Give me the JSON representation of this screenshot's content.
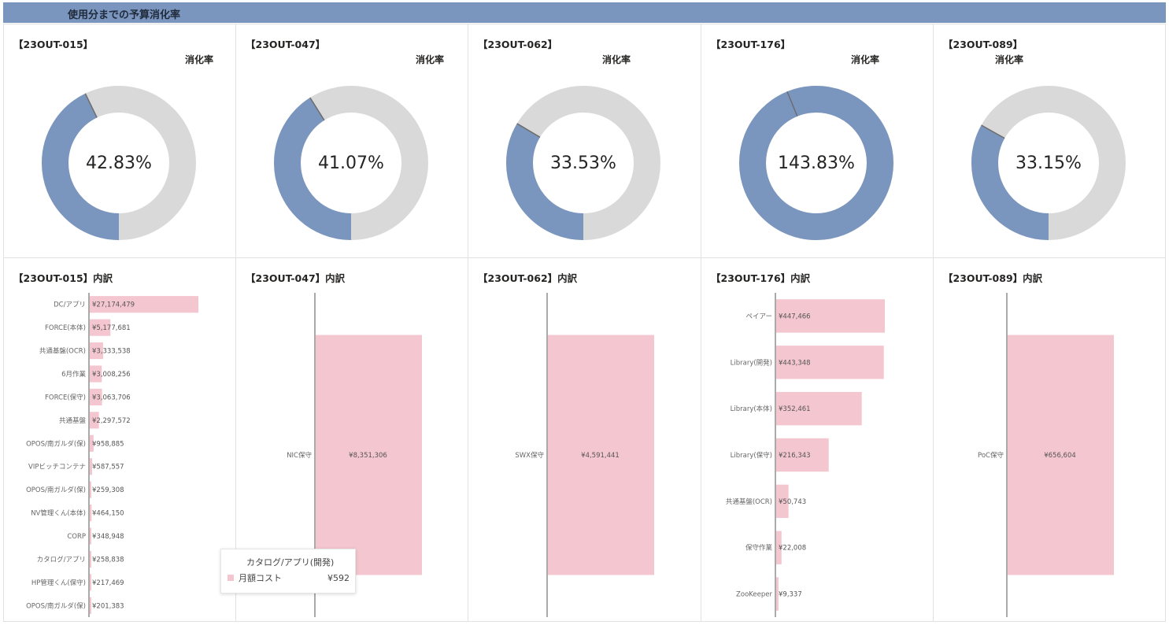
{
  "header": {
    "title": "使用分までの予算消化率"
  },
  "colors": {
    "header_bg": "#7a96be",
    "donut_fill": "#7a96be",
    "donut_track": "#d9d9d9",
    "bar_fill": "#f4c6cf"
  },
  "donut_label": "消化率",
  "projects": [
    {
      "code": "【23OUT-015】",
      "pct_text": "42.83%",
      "pct": 42.83
    },
    {
      "code": "【23OUT-047】",
      "pct_text": "41.07%",
      "pct": 41.07
    },
    {
      "code": "【23OUT-062】",
      "pct_text": "33.53%",
      "pct": 33.53
    },
    {
      "code": "【23OUT-176】",
      "pct_text": "143.83%",
      "pct": 143.83
    },
    {
      "code": "【23OUT-089】",
      "pct_text": "33.15%",
      "pct": 33.15
    }
  ],
  "breakdowns": [
    {
      "title": "【23OUT-015】内訳",
      "chart_data": {
        "type": "bar",
        "categories": [
          "DC/アプリ",
          "FORCE(本体)",
          "共通基盤(OCR)",
          "6月作業",
          "FORCE(保守)",
          "共通基盤",
          "OPOS/南ガルダ(保)",
          "VIPビッチコンテナ",
          "OPOS/南ガルダ(保)",
          "NV管理くん(本体)",
          "CORP",
          "カタログ/アプリ",
          "HP管理くん(保守)",
          "OPOS/南ガルダ(保)"
        ],
        "values": [
          27174479,
          5177681,
          3333538,
          3008256,
          3063706,
          2297572,
          958885,
          587557,
          259308,
          464150,
          348948,
          258838,
          217469,
          201383
        ],
        "value_labels": [
          "¥27,174,479",
          "¥5,177,681",
          "¥3,333,538",
          "¥3,008,256",
          "¥3,063,706",
          "¥2,297,572",
          "¥958,885",
          "¥587,557",
          "¥259,308",
          "¥464,150",
          "¥348,948",
          "¥258,838",
          "¥217,469",
          "¥201,383"
        ]
      }
    },
    {
      "title": "【23OUT-047】内訳",
      "chart_data": {
        "type": "bar",
        "categories": [
          "NIC保守"
        ],
        "values": [
          8351306
        ],
        "value_labels": [
          "¥8,351,306"
        ]
      }
    },
    {
      "title": "【23OUT-062】内訳",
      "chart_data": {
        "type": "bar",
        "categories": [
          "SWX保守"
        ],
        "values": [
          4591441
        ],
        "value_labels": [
          "¥4,591,441"
        ]
      }
    },
    {
      "title": "【23OUT-176】内訳",
      "chart_data": {
        "type": "bar",
        "categories": [
          "ペイアー",
          "Library(開発)",
          "Library(本体)",
          "Library(保守)",
          "共通基盤(OCR)",
          "保守作業",
          "ZooKeeper"
        ],
        "values": [
          447466,
          443348,
          352461,
          216343,
          50743,
          22008,
          9337
        ],
        "value_labels": [
          "¥447,466",
          "¥443,348",
          "¥352,461",
          "¥216,343",
          "¥50,743",
          "¥22,008",
          "¥9,337"
        ]
      }
    },
    {
      "title": "【23OUT-089】内訳",
      "chart_data": {
        "type": "bar",
        "categories": [
          "PoC保守"
        ],
        "values": [
          656604
        ],
        "value_labels": [
          "¥656,604"
        ]
      }
    }
  ],
  "tooltip": {
    "title": "カタログ/アプリ(開発)",
    "key": "月額コスト",
    "value": "¥592"
  }
}
